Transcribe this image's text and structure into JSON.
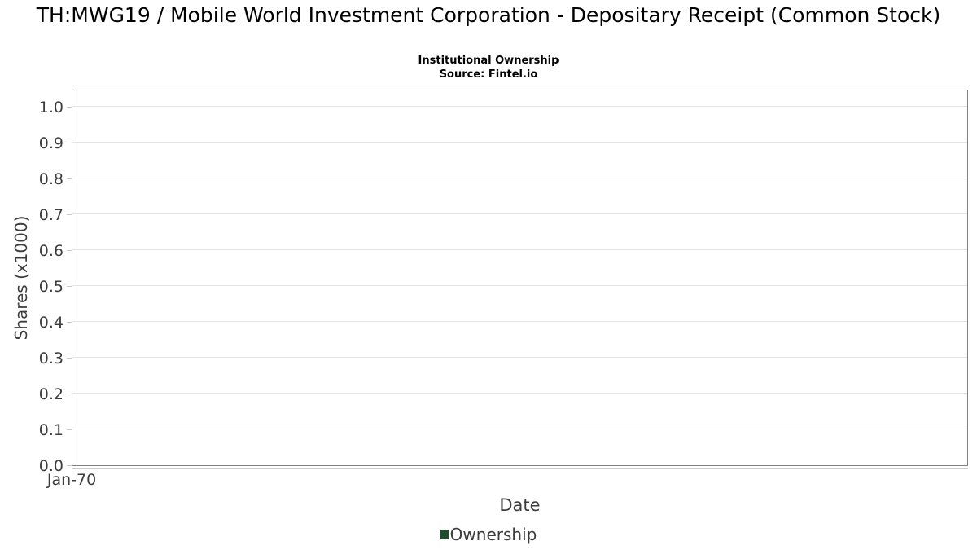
{
  "title": "TH:MWG19 / Mobile World Investment Corporation - Depositary Receipt (Common Stock)",
  "subtitle": "Institutional Ownership",
  "source": "Source: Fintel.io",
  "axes": {
    "y_label": "Shares (x1000)",
    "x_label": "Date",
    "y_tick_labels": [
      "0.0",
      "0.1",
      "0.2",
      "0.3",
      "0.4",
      "0.5",
      "0.6",
      "0.7",
      "0.8",
      "0.9",
      "1.0"
    ],
    "x_tick_labels": [
      "Jan-70"
    ]
  },
  "legend": {
    "position": "bottom",
    "items": [
      {
        "label": "Ownership",
        "color": "#1e4d2b"
      }
    ]
  },
  "colors": {
    "background": "#ffffff",
    "plot_border": "#808080",
    "gridline": "#e4e4e4",
    "tick": "#c9c9c9",
    "tick_label_text": "#3d3d3d",
    "axis_title_text": "#3d3d3d",
    "title_text": "#000000",
    "legend_marker": "#1e4d2b"
  },
  "chart_data": {
    "type": "line",
    "title": "TH:MWG19 / Mobile World Investment Corporation - Depositary Receipt (Common Stock)",
    "subtitle": "Institutional Ownership",
    "source": "Source: Fintel.io",
    "xlabel": "Date",
    "ylabel": "Shares (x1000)",
    "ylim": [
      0,
      1.05
    ],
    "y_ticks": [
      0.0,
      0.1,
      0.2,
      0.3,
      0.4,
      0.5,
      0.6,
      0.7,
      0.8,
      0.9,
      1.0
    ],
    "y_tick_labels": [
      "0.0",
      "0.1",
      "0.2",
      "0.3",
      "0.4",
      "0.5",
      "0.6",
      "0.7",
      "0.8",
      "0.9",
      "1.0"
    ],
    "x_ticks": [
      {
        "label": "Jan-70",
        "pos": 0
      }
    ],
    "grid": "horizontal",
    "legend_position": "bottom",
    "series": [
      {
        "name": "Ownership",
        "color": "#1e4d2b",
        "x": [],
        "values": []
      }
    ]
  }
}
